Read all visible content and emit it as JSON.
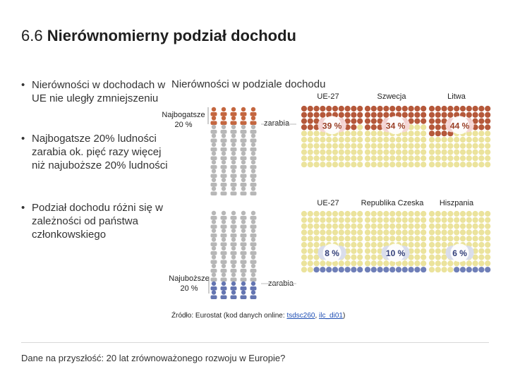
{
  "title": {
    "number": "6.6",
    "text": "Nierównomierny podział dochodu"
  },
  "bullets": [
    {
      "marker": "•",
      "text": "Nierówności w dochodach w UE nie uległy zmniejszeniu"
    },
    {
      "marker": "•",
      "text": "Najbogatsze 20% ludności zarabia ok. pięć razy więcej niż najuboższe 20% ludności"
    },
    {
      "marker": "•",
      "text": "Podział dochodu różni się w zależności od państwa członkowskiego"
    }
  ],
  "graphic": {
    "title": "Nierówności w podziale dochodu",
    "richest_label": "Najbogatsze",
    "richest_pct": "20 %",
    "poorest_label": "Najuboższe",
    "poorest_pct": "20 %",
    "earns_label_top": "zarabia",
    "earns_label_bottom": "zarabia"
  },
  "chart_data": {
    "type": "dot-matrix",
    "title": "Nierówności w podziale dochodu",
    "unit": "% dochodu",
    "top_group": {
      "description": "Najbogatsze 20 % zarabia",
      "countries": [
        "UE-27",
        "Szwecja",
        "Litwa"
      ],
      "values": [
        39,
        34,
        44
      ],
      "value_labels": [
        "39 %",
        "34 %",
        "44 %"
      ]
    },
    "bottom_group": {
      "description": "Najuboższe 20 % zarabia",
      "countries": [
        "UE-27",
        "Republika Czeska",
        "Hiszpania"
      ],
      "values": [
        8,
        10,
        6
      ],
      "value_labels": [
        "8 %",
        "10 %",
        "6 %"
      ]
    },
    "colors": {
      "rich": "#b5583a",
      "rich_light": "#f5d7d7",
      "poor": "#6f7fb8",
      "poor_light": "#d8dcee",
      "neutral": "#ebe39c",
      "people_rich": "#c4663f",
      "people_gray": "#b7b7b7",
      "people_poor": "#6475b1"
    }
  },
  "source": {
    "prefix": "Źródło: Eurostat (kod danych online: ",
    "link1": "tsdsc260",
    "sep": ", ",
    "link2": "ilc_di01",
    "suffix": ")"
  },
  "footer": "Dane na przyszłość: 20 lat zrównoważonego rozwoju w Europie?"
}
